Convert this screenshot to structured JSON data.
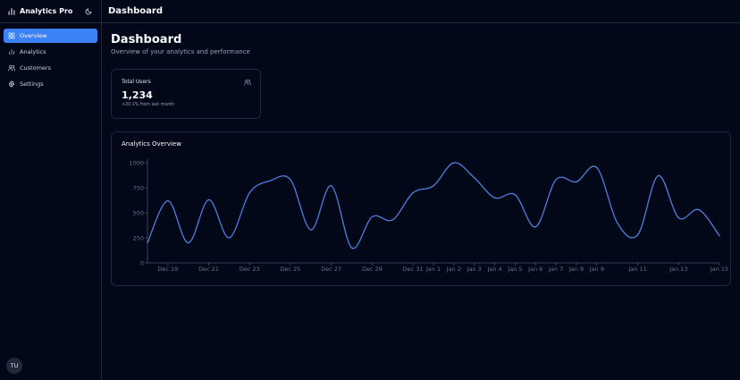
{
  "sidebar": {
    "brand": "Analytics Pro",
    "brand_icon": "bar-chart-icon",
    "theme_icon": "moon-icon",
    "items": [
      {
        "label": "Overview",
        "icon": "grid-icon",
        "active": true
      },
      {
        "label": "Analytics",
        "icon": "bar-chart-icon",
        "active": false
      },
      {
        "label": "Customers",
        "icon": "users-icon",
        "active": false
      },
      {
        "label": "Settings",
        "icon": "gear-icon",
        "active": false
      }
    ],
    "avatar": "TU"
  },
  "topbar": {
    "title": "Dashboard"
  },
  "page": {
    "title": "Dashboard",
    "subtitle": "Overview of your analytics and performance"
  },
  "stat": {
    "label": "Total Users",
    "value": "1,234",
    "note": "+20.1% from last month",
    "icon": "users-icon"
  },
  "colors": {
    "background": "#020817",
    "accent": "#3b82f6",
    "border": "#1e293b",
    "line": "#4f7fe0"
  },
  "chart": {
    "title": "Analytics Overview"
  },
  "chart_data": {
    "type": "line",
    "title": "Analytics Overview",
    "xlabel": "",
    "ylabel": "",
    "ylim": [
      0,
      1000
    ],
    "yticks": [
      0,
      250,
      500,
      750,
      1000
    ],
    "grid": false,
    "x_labels": [
      "Dec 19",
      "Dec 21",
      "Dec 23",
      "Dec 25",
      "Dec 27",
      "Dec 29",
      "Dec 31",
      "Jan 1",
      "Jan 2",
      "Jan 3",
      "Jan 4",
      "Jan 5",
      "Jan 6",
      "Jan 7",
      "Jan 8",
      "Jan 9",
      "Jan 11",
      "Jan 13",
      "Jan 15"
    ],
    "x": [
      "Dec 18",
      "Dec 19",
      "Dec 20",
      "Dec 21",
      "Dec 22",
      "Dec 23",
      "Dec 24",
      "Dec 25",
      "Dec 26",
      "Dec 27",
      "Dec 28",
      "Dec 29",
      "Dec 30",
      "Dec 31",
      "Jan 1",
      "Jan 2",
      "Jan 3",
      "Jan 4",
      "Jan 5",
      "Jan 6",
      "Jan 7",
      "Jan 8",
      "Jan 9",
      "Jan 10",
      "Jan 11",
      "Jan 12",
      "Jan 13",
      "Jan 14",
      "Jan 15"
    ],
    "series": [
      {
        "values": [
          200,
          620,
          200,
          630,
          250,
          700,
          820,
          830,
          330,
          770,
          150,
          460,
          430,
          700,
          770,
          1000,
          850,
          650,
          680,
          360,
          830,
          810,
          950,
          400,
          280,
          870,
          450,
          530,
          270
        ]
      }
    ]
  }
}
